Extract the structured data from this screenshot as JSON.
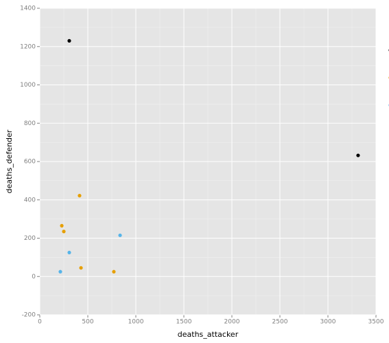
{
  "chart_data": {
    "type": "scatter",
    "x_label": "deaths_attacker",
    "y_label": "deaths_defender",
    "xlim": [
      0,
      3500
    ],
    "xticks": [
      0,
      500,
      1000,
      1500,
      2000,
      2500,
      3000,
      3500
    ],
    "ylim": [
      -200,
      1400
    ],
    "yticks": [
      -200,
      0,
      200,
      400,
      600,
      800,
      1000,
      1200,
      1400
    ],
    "grid": true,
    "series": [
      {
        "color": "#000000",
        "x": [
          307,
          3314
        ],
        "values": [
          1230,
          632
        ]
      },
      {
        "color": "#E69F00",
        "x": [
          414,
          229,
          250,
          429,
          771
        ],
        "values": [
          422,
          265,
          235,
          45,
          25
        ]
      },
      {
        "color": "#56B4E9",
        "x": [
          836,
          307,
          214
        ],
        "values": [
          215,
          125,
          25
        ]
      }
    ]
  }
}
